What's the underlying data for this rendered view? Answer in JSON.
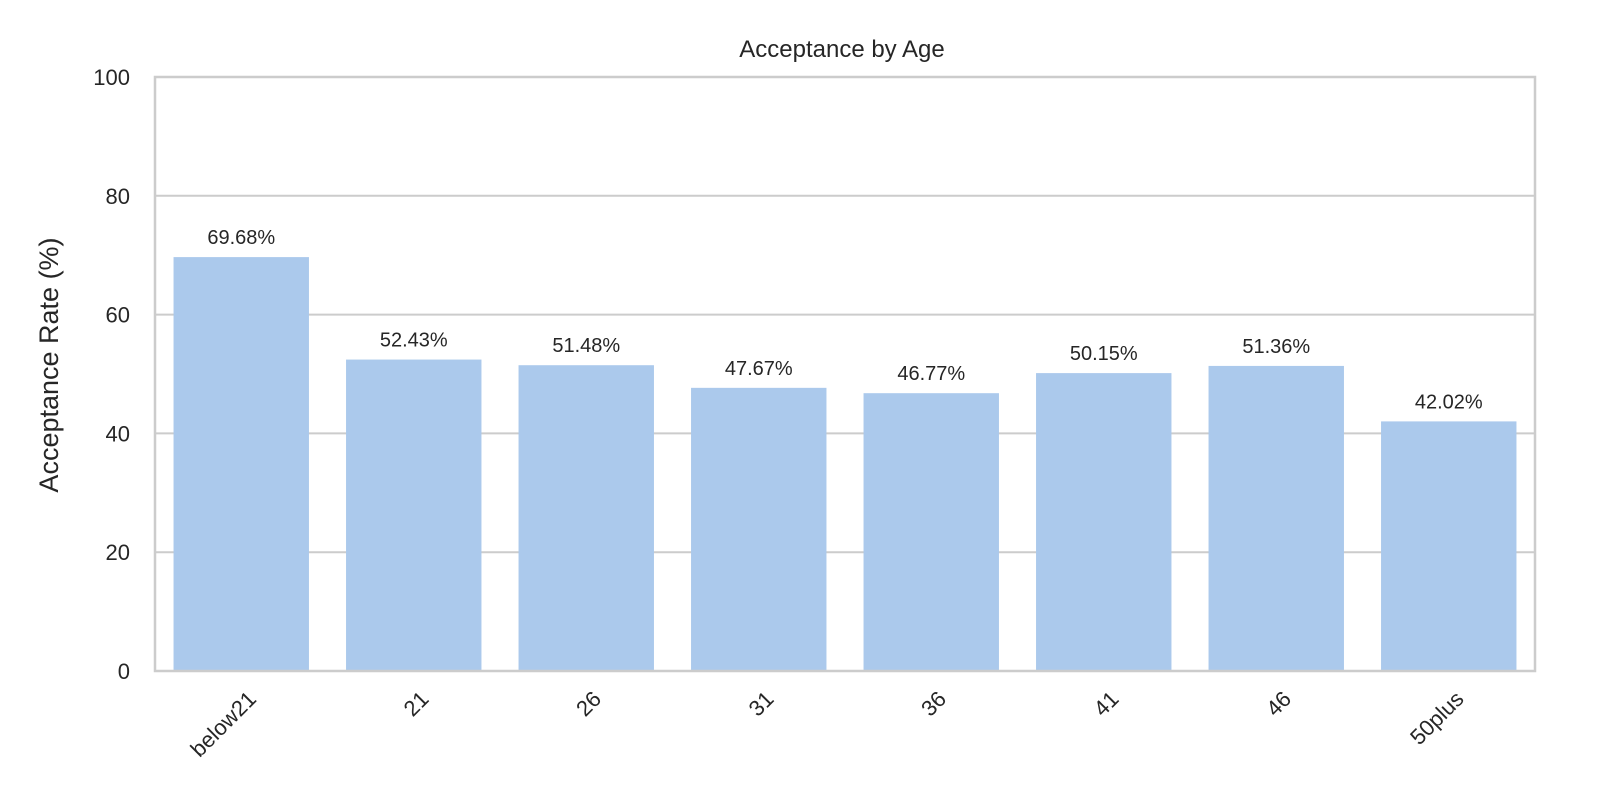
{
  "chart_data": {
    "type": "bar",
    "title": "Acceptance by Age",
    "xlabel": "",
    "ylabel": "Acceptance Rate (%)",
    "categories": [
      "below21",
      "21",
      "26",
      "31",
      "36",
      "41",
      "46",
      "50plus"
    ],
    "values": [
      69.68,
      52.43,
      51.48,
      47.67,
      46.77,
      50.15,
      51.36,
      42.02
    ],
    "data_labels": [
      "69.68%",
      "52.43%",
      "51.48%",
      "47.67%",
      "46.77%",
      "50.15%",
      "51.36%",
      "42.02%"
    ],
    "ylim": [
      0,
      100
    ],
    "yticks": [
      0,
      20,
      40,
      60,
      80,
      100
    ],
    "ytick_labels": [
      "0",
      "20",
      "40",
      "60",
      "80",
      "100"
    ],
    "grid": true,
    "bar_color": "#abc9ec",
    "grid_color": "#cccccc",
    "x_tick_rotation": 45
  }
}
